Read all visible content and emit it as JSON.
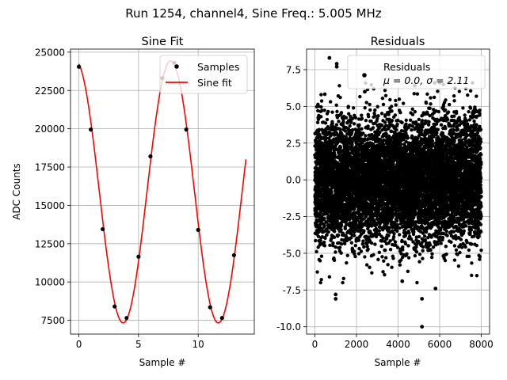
{
  "suptitle": "Run 1254, channel4, Sine Freq.: 5.005 MHz",
  "colors": {
    "fit_line": "#ff0000",
    "points": "#000000",
    "grid": "#b0b0b0"
  },
  "chart_data": [
    {
      "type": "line",
      "title": "Sine Fit",
      "xlabel": "Sample #",
      "ylabel": "ADC Counts",
      "xlim": [
        -0.7,
        14.7
      ],
      "ylim": [
        6600,
        25200
      ],
      "xticks": [
        0,
        5,
        10
      ],
      "yticks": [
        7500,
        10000,
        12500,
        15000,
        17500,
        20000,
        22500,
        25000
      ],
      "grid": true,
      "legend_position": "top-right",
      "series": [
        {
          "name": "Samples",
          "kind": "scatter",
          "x": [
            0,
            1,
            2,
            3,
            4,
            5,
            6,
            7,
            8,
            9,
            10,
            11,
            12,
            13
          ],
          "y": [
            24050,
            19950,
            13450,
            8400,
            7650,
            11650,
            18200,
            23300,
            24300,
            19950,
            13400,
            8350,
            7650,
            11750
          ]
        },
        {
          "name": "Sine fit",
          "kind": "line",
          "model": {
            "offset": 15880,
            "amplitude": 8550,
            "period": 7.975,
            "peak_x": 7.7,
            "x_range": [
              0,
              14
            ]
          }
        }
      ]
    },
    {
      "type": "scatter",
      "title": "Residuals",
      "xlabel": "Sample #",
      "ylabel": "",
      "xlim": [
        -400,
        8400
      ],
      "ylim": [
        -10.5,
        8.9
      ],
      "xticks": [
        0,
        2000,
        4000,
        6000,
        8000
      ],
      "yticks": [
        -10.0,
        -7.5,
        -5.0,
        -2.5,
        0.0,
        2.5,
        5.0,
        7.5
      ],
      "grid": true,
      "legend_position": "top-right",
      "series": [
        {
          "name": "Residuals",
          "legend_line2": "μ = 0.0, σ = 2.11",
          "mean": 0.0,
          "sigma": 2.11,
          "n_points": 8000,
          "outliers": [
            {
              "x": 5150,
              "y": -10.0
            },
            {
              "x": 5150,
              "y": -8.1
            },
            {
              "x": 1000,
              "y": -8.1
            },
            {
              "x": 1000,
              "y": -7.8
            },
            {
              "x": 700,
              "y": 8.3
            },
            {
              "x": 1050,
              "y": 7.9
            },
            {
              "x": 1050,
              "y": 7.7
            },
            {
              "x": 4200,
              "y": -6.9
            },
            {
              "x": 5800,
              "y": -7.4
            },
            {
              "x": 2400,
              "y": 6.0
            },
            {
              "x": 4800,
              "y": 6.4
            }
          ]
        }
      ]
    }
  ]
}
